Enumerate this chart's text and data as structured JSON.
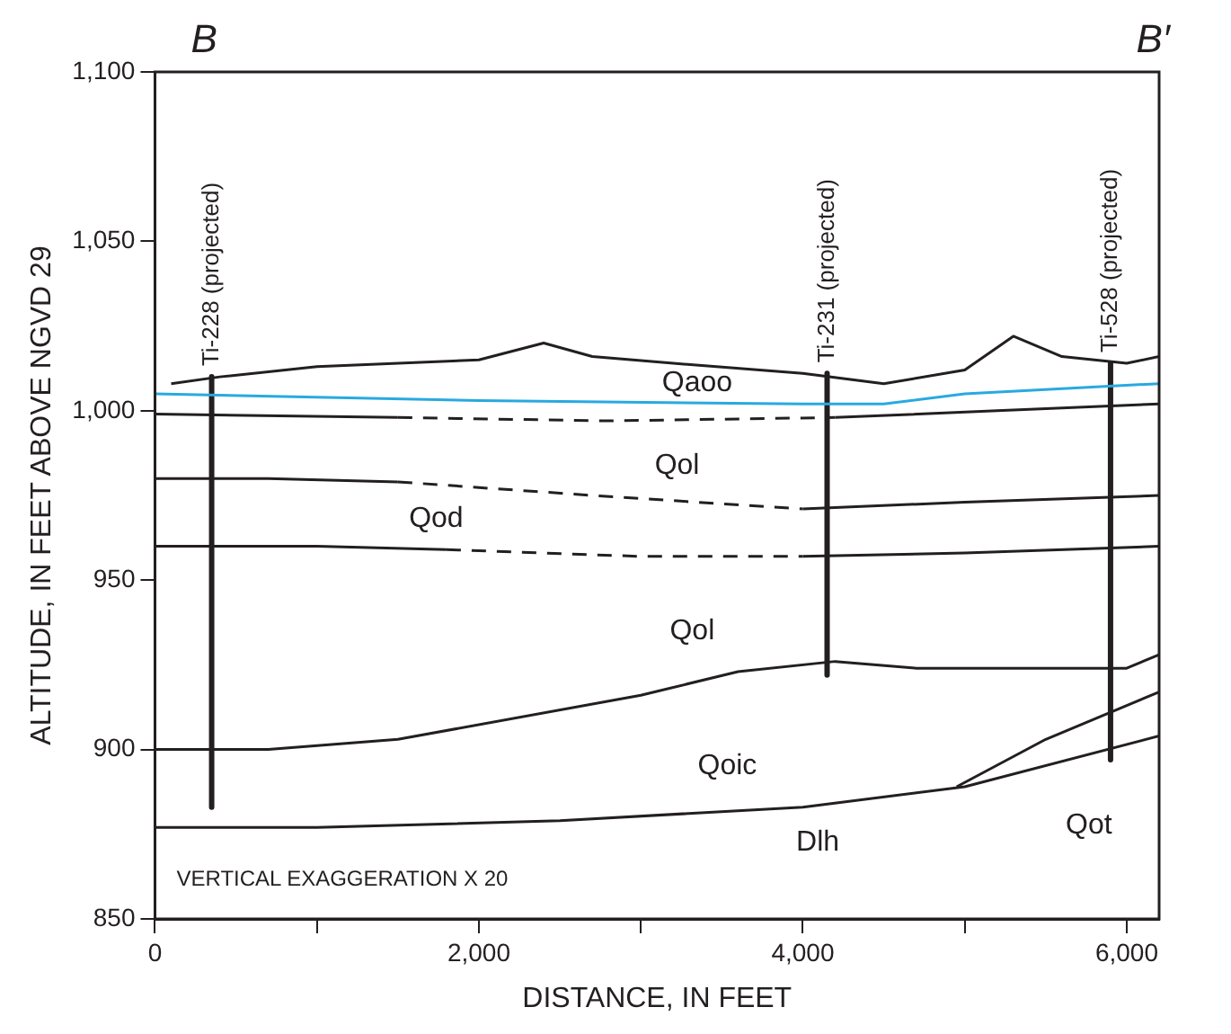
{
  "chart_data": {
    "type": "line",
    "xlabel": "DISTANCE, IN FEET",
    "ylabel": "ALTITUDE, IN FEET ABOVE NGVD 29",
    "xlim": [
      0,
      6200
    ],
    "xticks": [
      0,
      {
        "value": 1000,
        "label": null
      },
      {
        "value": 2000,
        "label": "2,000"
      },
      {
        "value": 3000,
        "label": null
      },
      {
        "value": 4000,
        "label": "4,000"
      },
      {
        "value": 5000,
        "label": null
      },
      {
        "value": 6000,
        "label": "6,000"
      }
    ],
    "ylim": [
      850,
      1100
    ],
    "yticks": [
      850,
      900,
      950,
      {
        "value": 1000,
        "label": "1,000"
      },
      {
        "value": 1050,
        "label": "1,050"
      },
      {
        "value": 1100,
        "label": "1,100"
      }
    ],
    "grid": false,
    "legend": false,
    "marker": "none",
    "series": [
      {
        "color": "#231f20",
        "x": [
          100,
          400,
          1000,
          2000,
          2400,
          2700,
          3200,
          4000,
          4500,
          5000,
          5300,
          5600,
          6000,
          6200
        ],
        "values": [
          1008,
          1010,
          1013,
          1015,
          1020,
          1016,
          1014,
          1011,
          1008,
          1012,
          1022,
          1016,
          1014,
          1016
        ]
      },
      {
        "color": "#29a9e0",
        "x": [
          0,
          2000,
          4000,
          4500,
          5000,
          6200
        ],
        "values": [
          1005,
          1003,
          1002,
          1002,
          1005,
          1008
        ]
      },
      {
        "color": "#231f20",
        "x": [
          0,
          1500
        ],
        "values": [
          999,
          998
        ]
      },
      {
        "color": "#231f20",
        "line_style": "dashed",
        "x": [
          1500,
          2800,
          4200
        ],
        "values": [
          998,
          997,
          998
        ]
      },
      {
        "color": "#231f20",
        "x": [
          4200,
          5200,
          6200
        ],
        "values": [
          998,
          1000,
          1002
        ]
      },
      {
        "color": "#231f20",
        "x": [
          0,
          700,
          1500
        ],
        "values": [
          980,
          980,
          979
        ]
      },
      {
        "color": "#231f20",
        "line_style": "dashed",
        "x": [
          1500,
          2700,
          4000
        ],
        "values": [
          979,
          975,
          971
        ]
      },
      {
        "color": "#231f20",
        "x": [
          4000,
          5000,
          6200
        ],
        "values": [
          971,
          973,
          975
        ]
      },
      {
        "color": "#231f20",
        "x": [
          0,
          1000,
          1800
        ],
        "values": [
          960,
          960,
          959
        ]
      },
      {
        "color": "#231f20",
        "line_style": "dashed",
        "x": [
          1800,
          3000,
          4000
        ],
        "values": [
          959,
          957,
          957
        ]
      },
      {
        "color": "#231f20",
        "x": [
          4000,
          5000,
          6200
        ],
        "values": [
          957,
          958,
          960
        ]
      },
      {
        "color": "#231f20",
        "x": [
          0,
          700,
          1500,
          3000,
          3600,
          4200,
          4700,
          6000,
          6200
        ],
        "values": [
          900,
          900,
          903,
          916,
          923,
          926,
          924,
          924,
          928
        ]
      },
      {
        "color": "#231f20",
        "x": [
          0,
          1000,
          2500,
          4000,
          5000,
          6200
        ],
        "values": [
          877,
          877,
          879,
          883,
          889,
          904
        ]
      },
      {
        "color": "#231f20",
        "x": [
          4950,
          5500,
          6200
        ],
        "values": [
          889,
          903,
          917
        ]
      },
      {
        "name": "Ti-228 (projected)",
        "color": "#231f20",
        "x": [
          350,
          350
        ],
        "values": [
          1010,
          883
        ]
      },
      {
        "name": "Ti-231 (projected)",
        "color": "#231f20",
        "x": [
          4150,
          4150
        ],
        "values": [
          1011,
          922
        ]
      },
      {
        "name": "Ti-528 (projected)",
        "color": "#231f20",
        "x": [
          5900,
          5900
        ],
        "values": [
          1014,
          897
        ]
      }
    ],
    "annotations": [
      "B",
      "B′",
      "VERTICAL EXAGGERATION X 20",
      "Qaoo",
      "Qol",
      "Qod",
      "Qol",
      "Qoic",
      "Qot",
      "Dlh"
    ]
  }
}
